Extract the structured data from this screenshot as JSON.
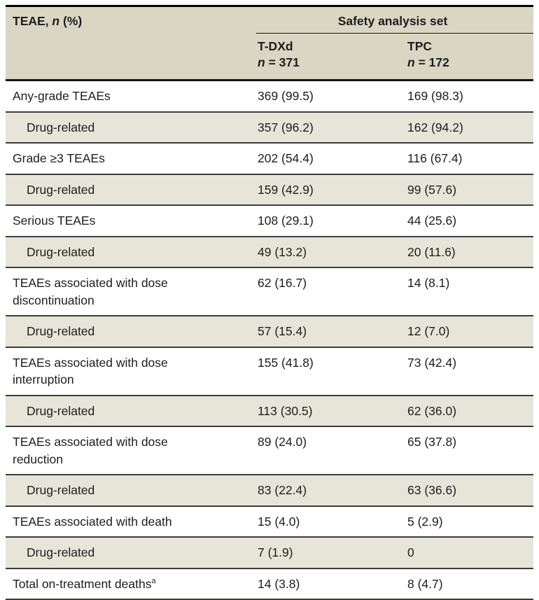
{
  "table": {
    "row_header": {
      "prefix": "TEAE, ",
      "italic": "n",
      "suffix": " (%)"
    },
    "group_header": "Safety analysis set",
    "columns": [
      {
        "name": "T-DXd",
        "n_italic": "n",
        "n_rest": " = 371"
      },
      {
        "name": "TPC",
        "n_italic": "n",
        "n_rest": " = 172"
      }
    ],
    "rows": [
      {
        "label": "Any-grade TEAEs",
        "tdxd": "369 (99.5)",
        "tpc": "169 (98.3)"
      },
      {
        "label": "Drug-related",
        "tdxd": "357 (96.2)",
        "tpc": "162 (94.2)"
      },
      {
        "label": "Grade ≥3 TEAEs",
        "tdxd": "202 (54.4)",
        "tpc": "116 (67.4)"
      },
      {
        "label": "Drug-related",
        "tdxd": "159 (42.9)",
        "tpc": "99 (57.6)"
      },
      {
        "label": "Serious TEAEs",
        "tdxd": "108 (29.1)",
        "tpc": "44 (25.6)"
      },
      {
        "label": "Drug-related",
        "tdxd": "49 (13.2)",
        "tpc": "20 (11.6)"
      },
      {
        "label": "TEAEs associated with dose discontinuation",
        "tdxd": "62 (16.7)",
        "tpc": "14 (8.1)"
      },
      {
        "label": "Drug-related",
        "tdxd": "57 (15.4)",
        "tpc": "12 (7.0)"
      },
      {
        "label": "TEAEs associated with dose interruption",
        "tdxd": "155 (41.8)",
        "tpc": "73 (42.4)"
      },
      {
        "label": "Drug-related",
        "tdxd": "113 (30.5)",
        "tpc": "62 (36.0)"
      },
      {
        "label": "TEAEs associated with dose reduction",
        "tdxd": "89 (24.0)",
        "tpc": "65 (37.8)"
      },
      {
        "label": "Drug-related",
        "tdxd": "83 (22.4)",
        "tpc": "63 (36.6)"
      },
      {
        "label": "TEAEs associated with death",
        "tdxd": "15 (4.0)",
        "tpc": "5 (2.9)"
      },
      {
        "label": "Drug-related",
        "tdxd": "7 (1.9)",
        "tpc": "0"
      },
      {
        "label": "Total on-treatment deaths",
        "sup": "a",
        "tdxd": "14 (3.8)",
        "tpc": "8 (4.7)"
      }
    ]
  },
  "colors": {
    "header_bg": "#d9d7c3",
    "shaded_row_bg": "#e6e5d8",
    "top_rule": "#000000",
    "row_rule": "#3d3d3a",
    "text": "#1e1e1c"
  }
}
